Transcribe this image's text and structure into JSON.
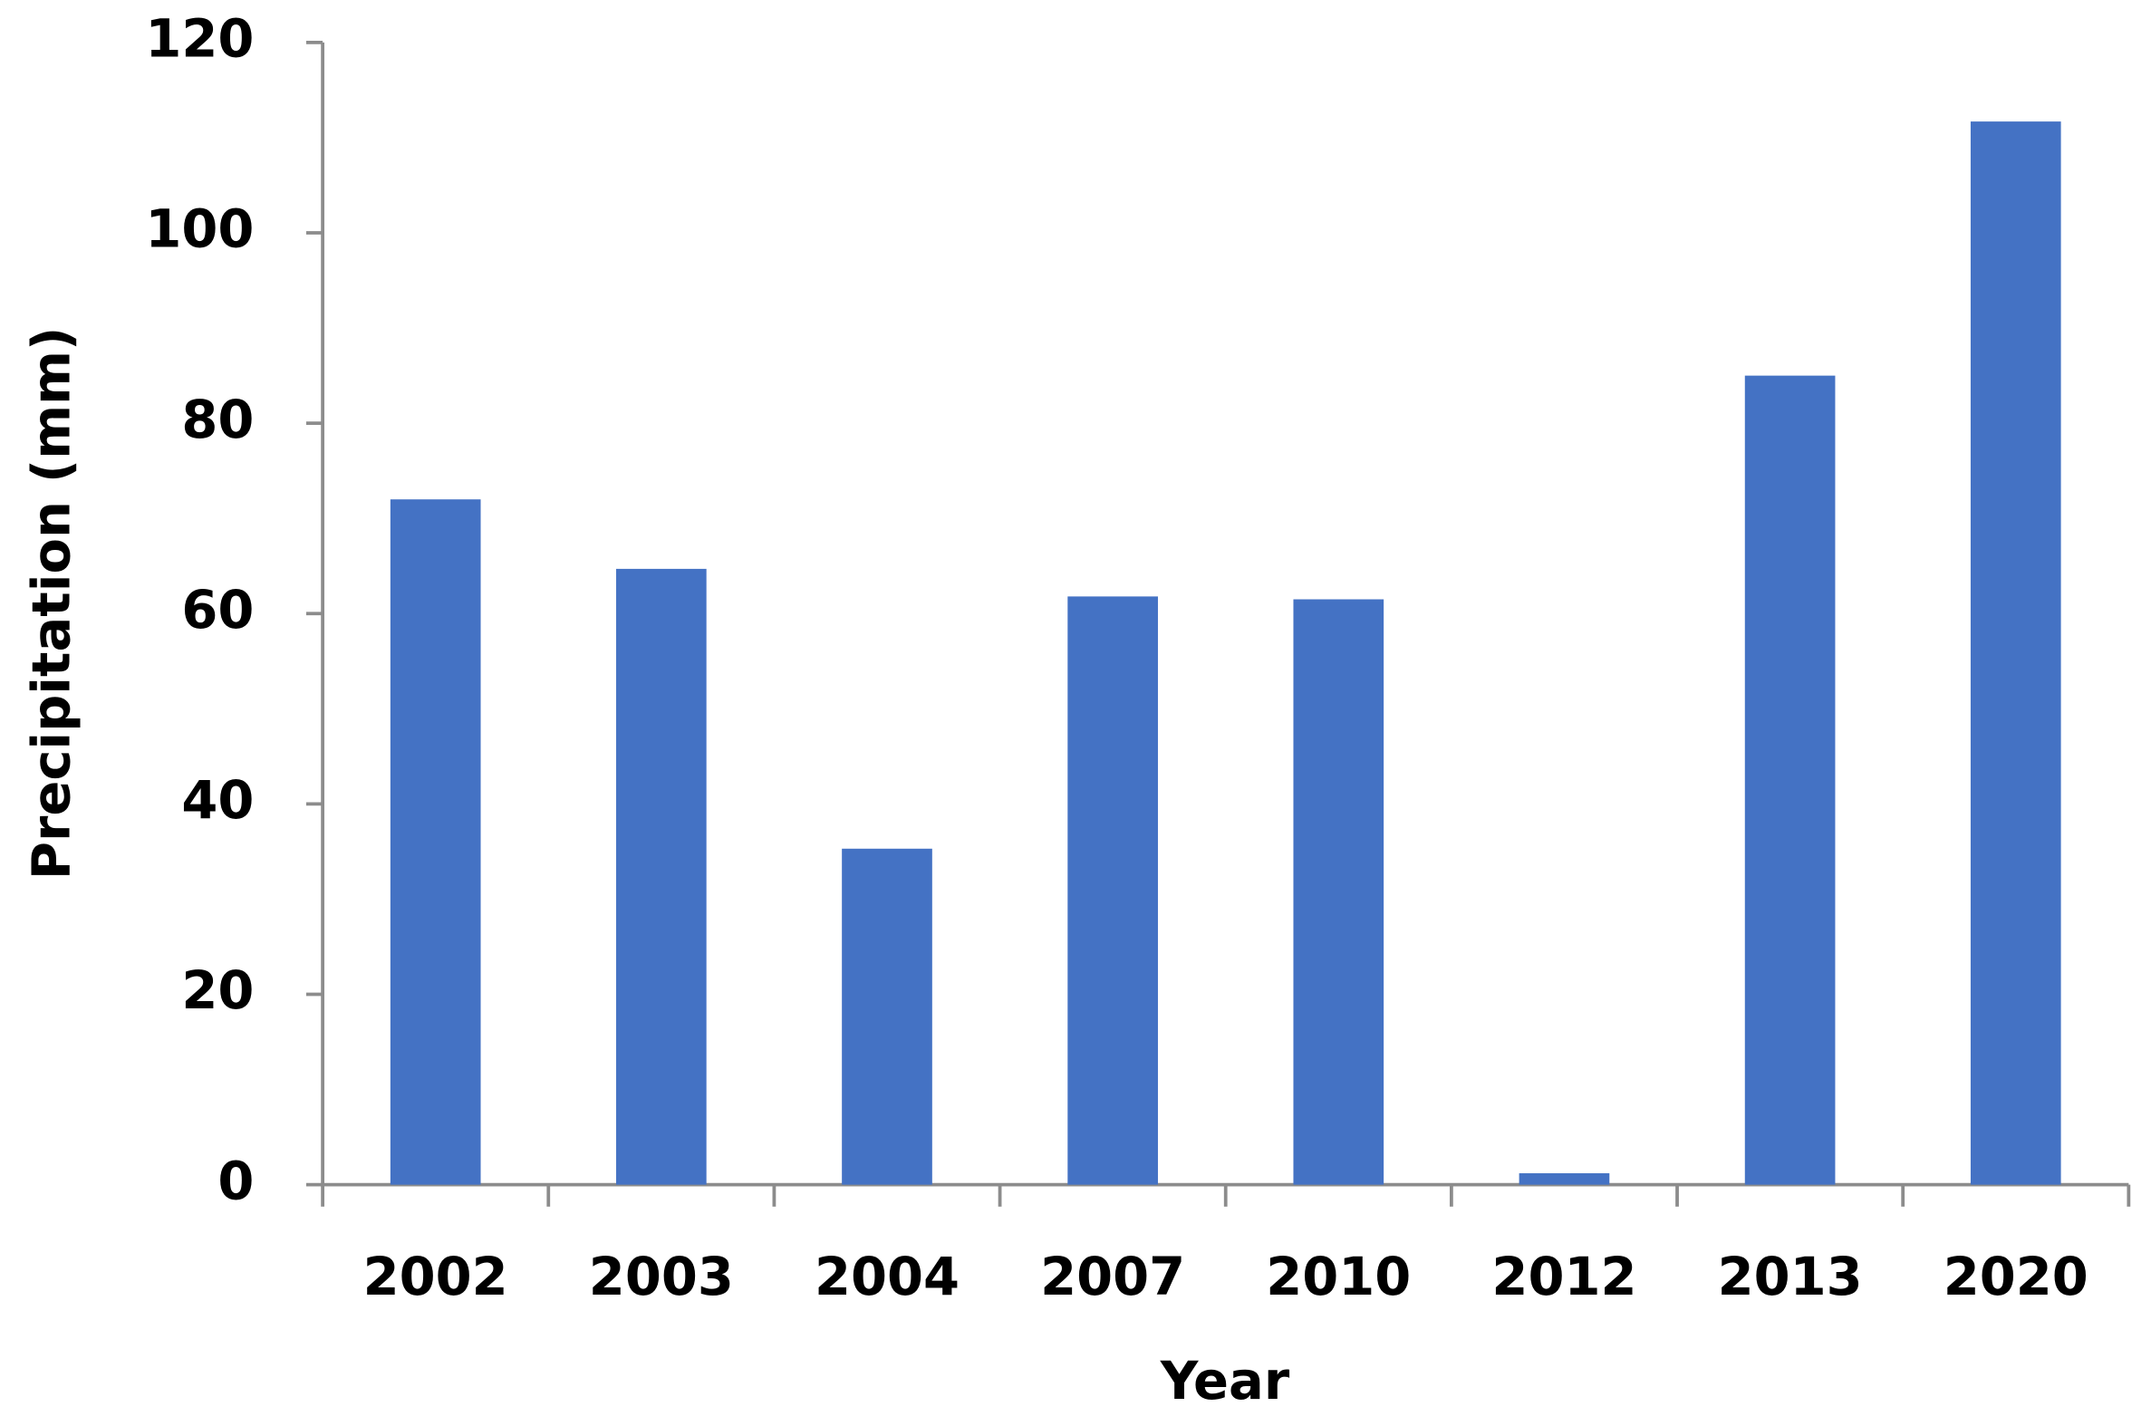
{
  "chart_data": {
    "type": "bar",
    "x_label": "Year",
    "y_label": "Precipitation (mm)",
    "categories": [
      "2002",
      "2003",
      "2004",
      "2007",
      "2010",
      "2012",
      "2013",
      "2020"
    ],
    "values": [
      72,
      64.7,
      35.3,
      61.8,
      61.5,
      1.2,
      85,
      111.7
    ],
    "color": "#4472c4",
    "ylim": [
      0,
      120
    ],
    "yticks": [
      0,
      20,
      40,
      60,
      80,
      100,
      120
    ],
    "grid": false
  }
}
